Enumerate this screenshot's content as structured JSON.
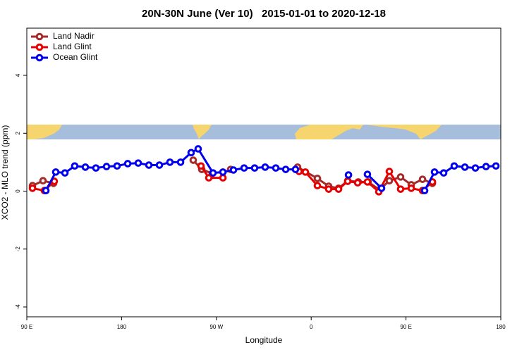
{
  "chart_data": {
    "type": "line",
    "title": "20N-30N June (Ver 10)   2015-01-01 to 2020-12-18",
    "x_label": "Longitude",
    "y_label": "XCO2 - MLO trend (ppm)",
    "xlim": [
      90,
      540
    ],
    "xticks": [
      {
        "value": 90,
        "label": "90 E"
      },
      {
        "value": 180,
        "label": "180"
      },
      {
        "value": 270,
        "label": "90 W"
      },
      {
        "value": 360,
        "label": "0"
      },
      {
        "value": 450,
        "label": "90 E"
      },
      {
        "value": 540,
        "label": "180"
      }
    ],
    "ylim": [
      -4.34,
      5.63
    ],
    "yticks": [
      -4,
      -2,
      0,
      2,
      4
    ],
    "legend": "topleft",
    "series": [
      {
        "name": "Land Nadir",
        "color": "#a52a2a",
        "x": [
          95.4,
          105.4,
          115.4,
          180,
          248,
          256.1,
          266.1,
          275,
          283.5,
          315,
          347.1,
          365.9,
          376.6,
          386,
          394.7,
          404.7,
          414.1,
          424.8,
          434.2,
          444.9,
          455,
          465.7,
          475.1
        ],
        "values": [
          0.19,
          0.36,
          0.27,
          null,
          1.07,
          0.75,
          0.61,
          null,
          0.75,
          null,
          0.83,
          0.44,
          0.17,
          0.1,
          0.36,
          0.32,
          0.32,
          0.05,
          0.36,
          0.49,
          0.22,
          0.41,
          0.27
        ]
      },
      {
        "name": "Land Glint",
        "color": "#e60000",
        "x": [
          95.4,
          106.7,
          116.1,
          180,
          255.4,
          262.8,
          276.2,
          310,
          348.5,
          354.5,
          365.9,
          376.6,
          386,
          394.7,
          404.1,
          413.4,
          424.2,
          434.2,
          444.9,
          455,
          465.7,
          475.1
        ],
        "values": [
          0.1,
          0.02,
          0.34,
          null,
          0.87,
          0.46,
          0.46,
          null,
          0.68,
          0.66,
          0.19,
          0.07,
          0.07,
          0.34,
          0.29,
          0.32,
          -0.02,
          0.68,
          0.07,
          0.1,
          0.02,
          0.32
        ]
      },
      {
        "name": "Ocean Glint",
        "color": "#0000ee",
        "x": [
          108.1,
          117.5,
          126.2,
          135.5,
          145.6,
          155.6,
          165.7,
          175.7,
          185.8,
          195.8,
          205.9,
          215.9,
          225.9,
          236,
          246,
          252.7,
          266.8,
          276.2,
          286.2,
          296.3,
          306.3,
          316.3,
          326.4,
          335.8,
          345.1,
          370,
          395.4,
          405,
          413.4,
          426.8,
          445,
          467.7,
          477.1,
          485.8,
          495.8,
          505.9,
          515.9,
          526,
          535.4
        ],
        "values": [
          0.02,
          0.66,
          0.63,
          0.87,
          0.83,
          0.8,
          0.85,
          0.87,
          0.95,
          0.97,
          0.9,
          0.9,
          1.0,
          1.0,
          1.33,
          1.46,
          0.63,
          0.66,
          0.73,
          0.8,
          0.8,
          0.83,
          0.8,
          0.75,
          0.75,
          null,
          0.56,
          null,
          0.58,
          0.1,
          null,
          0.02,
          0.66,
          0.63,
          0.87,
          0.83,
          0.8,
          0.85,
          0.87
        ]
      }
    ]
  }
}
